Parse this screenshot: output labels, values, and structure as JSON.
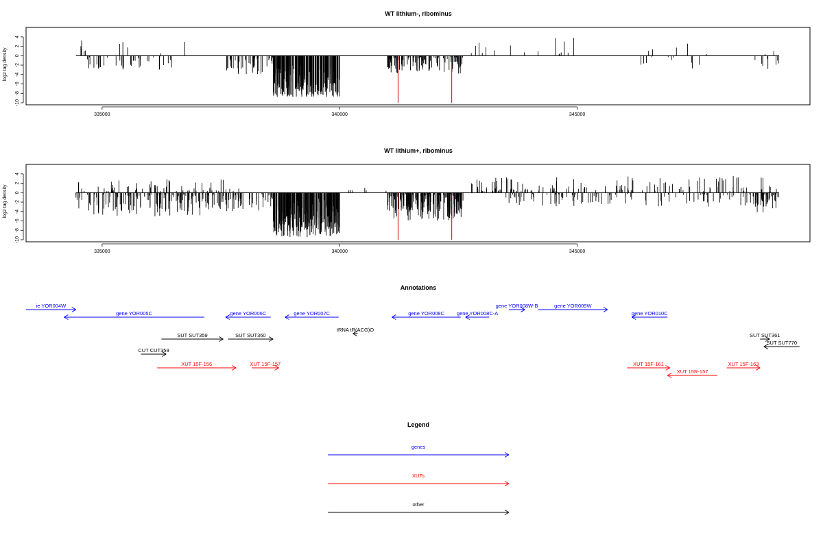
{
  "colors": {
    "gene": "#0000ff",
    "xut": "#ff0000",
    "other": "#000000",
    "marker": "#cc0000",
    "bar": "#000000"
  },
  "chart_data": [
    {
      "type": "bar",
      "title": "WT lithium-, ribominus",
      "ylabel": "log2 tag density",
      "ylim": [
        -10,
        5
      ],
      "xlim": [
        333400,
        349900
      ],
      "xticks": [
        335000,
        340000,
        345000
      ],
      "xtick_labels": [
        "335000",
        "340000",
        "345000"
      ],
      "yticks": [
        4,
        2,
        0,
        -2,
        -4,
        -6,
        -8,
        -10
      ],
      "ytick_labels": [
        "4",
        "2",
        "0",
        "-2",
        "-4",
        "-6",
        "-8",
        "-10"
      ],
      "density": "sparse",
      "marker_positions": [
        341230,
        342360
      ],
      "marker_value": -10,
      "regions": [
        {
          "start": 334450,
          "end": 334650,
          "sign": 1,
          "count": 5,
          "max": 3.4
        },
        {
          "start": 334650,
          "end": 336600,
          "sign": -1,
          "count": 40,
          "max": 3.2
        },
        {
          "start": 335300,
          "end": 336900,
          "sign": 1,
          "count": 5,
          "max": 3.5
        },
        {
          "start": 337600,
          "end": 338600,
          "sign": -1,
          "count": 45,
          "max": 4.0
        },
        {
          "start": 338600,
          "end": 340000,
          "sign": -1,
          "count": 220,
          "max": 8.8
        },
        {
          "start": 341000,
          "end": 342600,
          "sign": -1,
          "count": 110,
          "max": 3.8
        },
        {
          "start": 342750,
          "end": 345400,
          "sign": 1,
          "count": 16,
          "max": 4.0
        },
        {
          "start": 346300,
          "end": 347600,
          "sign": -1,
          "count": 10,
          "max": 2.8
        },
        {
          "start": 346300,
          "end": 349200,
          "sign": 1,
          "count": 7,
          "max": 3.0
        },
        {
          "start": 348700,
          "end": 349250,
          "sign": -1,
          "count": 8,
          "max": 3.5
        }
      ]
    },
    {
      "type": "bar",
      "title": "WT lithium+, ribominus",
      "ylabel": "log2 tag density",
      "ylim": [
        -10,
        5
      ],
      "xlim": [
        333400,
        349900
      ],
      "xticks": [
        335000,
        340000,
        345000
      ],
      "xtick_labels": [
        "335000",
        "340000",
        "345000"
      ],
      "yticks": [
        4,
        2,
        0,
        -2,
        -4,
        -6,
        -8,
        -10
      ],
      "ytick_labels": [
        "4",
        "2",
        "0",
        "-2",
        "-4",
        "-6",
        "-8",
        "-10"
      ],
      "density": "dense",
      "marker_positions": [
        341230,
        342360
      ],
      "marker_value": -10,
      "regions": [
        {
          "start": 334450,
          "end": 337500,
          "sign": -1,
          "count": 150,
          "max": 5.0
        },
        {
          "start": 334450,
          "end": 338000,
          "sign": 1,
          "count": 60,
          "max": 3.0
        },
        {
          "start": 337500,
          "end": 338600,
          "sign": -1,
          "count": 50,
          "max": 4.0
        },
        {
          "start": 338600,
          "end": 340000,
          "sign": -1,
          "count": 250,
          "max": 9.5
        },
        {
          "start": 340000,
          "end": 341000,
          "sign": 1,
          "count": 6,
          "max": 2.0
        },
        {
          "start": 341000,
          "end": 342600,
          "sign": -1,
          "count": 200,
          "max": 6.0
        },
        {
          "start": 342750,
          "end": 344000,
          "sign": 1,
          "count": 40,
          "max": 4.2
        },
        {
          "start": 343500,
          "end": 349200,
          "sign": -1,
          "count": 110,
          "max": 3.0
        },
        {
          "start": 344000,
          "end": 349200,
          "sign": 1,
          "count": 90,
          "max": 3.6
        },
        {
          "start": 348700,
          "end": 349250,
          "sign": -1,
          "count": 30,
          "max": 4.2
        },
        {
          "start": 348900,
          "end": 349000,
          "sign": 1,
          "count": 2,
          "max": 4.8
        }
      ]
    }
  ],
  "annotations": {
    "title": "Annotations",
    "xlim": [
      333400,
      349900
    ],
    "items": [
      {
        "label": "ie YOR004W",
        "kind": "gene",
        "start": 333400,
        "end": 334450,
        "strand": "+",
        "row": 0
      },
      {
        "label": "gene YOR005C",
        "kind": "gene",
        "start": 334200,
        "end": 337150,
        "strand": "-",
        "row": 1
      },
      {
        "label": "gene YOR006C",
        "kind": "gene",
        "start": 337600,
        "end": 338550,
        "strand": "-",
        "row": 1
      },
      {
        "label": "gene YOR007C",
        "kind": "gene",
        "start": 338850,
        "end": 339980,
        "strand": "-",
        "row": 1
      },
      {
        "label": "gene YOR008C",
        "kind": "gene",
        "start": 341100,
        "end": 342550,
        "strand": "-",
        "row": 1
      },
      {
        "label": "gene YOR008C-A",
        "kind": "gene",
        "start": 342650,
        "end": 343150,
        "strand": "-",
        "row": 1
      },
      {
        "label": "gene YOR008W-B",
        "kind": "gene",
        "start": 343560,
        "end": 343900,
        "strand": "+",
        "row": 0
      },
      {
        "label": "gene YOR009W",
        "kind": "gene",
        "start": 344180,
        "end": 345640,
        "strand": "+",
        "row": 0
      },
      {
        "label": "gene YOR010C",
        "kind": "gene",
        "start": 346150,
        "end": 346900,
        "strand": "-",
        "row": 1
      },
      {
        "label": "tRNA tR(ACG)O",
        "kind": "other",
        "start": 340280,
        "end": 340380,
        "strand": "-",
        "row": 2
      },
      {
        "label": "SUT SUT359",
        "kind": "other",
        "start": 336250,
        "end": 337550,
        "strand": "+",
        "row": 3
      },
      {
        "label": "SUT SUT360",
        "kind": "other",
        "start": 337650,
        "end": 338600,
        "strand": "+",
        "row": 3
      },
      {
        "label": "SUT SUT361",
        "kind": "other",
        "start": 348850,
        "end": 349050,
        "strand": "+",
        "row": 3
      },
      {
        "label": "SUT SUT770",
        "kind": "other",
        "start": 348930,
        "end": 349680,
        "strand": "-",
        "row": 4
      },
      {
        "label": "CUT CUT359",
        "kind": "other",
        "start": 335820,
        "end": 336350,
        "strand": "+",
        "row": 5
      },
      {
        "label": "XUT 15F-156",
        "kind": "xut",
        "start": 336160,
        "end": 337820,
        "strand": "+",
        "row": 6
      },
      {
        "label": "XUT 15F-157",
        "kind": "xut",
        "start": 338150,
        "end": 338720,
        "strand": "+",
        "row": 6
      },
      {
        "label": "XUT 15F-161",
        "kind": "xut",
        "start": 346050,
        "end": 346950,
        "strand": "+",
        "row": 6
      },
      {
        "label": "XUT 15R-157",
        "kind": "xut",
        "start": 346900,
        "end": 347950,
        "strand": "-",
        "row": 7
      },
      {
        "label": "XUT 15F-163",
        "kind": "xut",
        "start": 348150,
        "end": 348850,
        "strand": "+",
        "row": 6
      }
    ]
  },
  "legend": {
    "title": "Legend",
    "items": [
      {
        "label": "genes",
        "kind": "gene"
      },
      {
        "label": "XUTs",
        "kind": "xut"
      },
      {
        "label": "other",
        "kind": "other"
      }
    ]
  }
}
